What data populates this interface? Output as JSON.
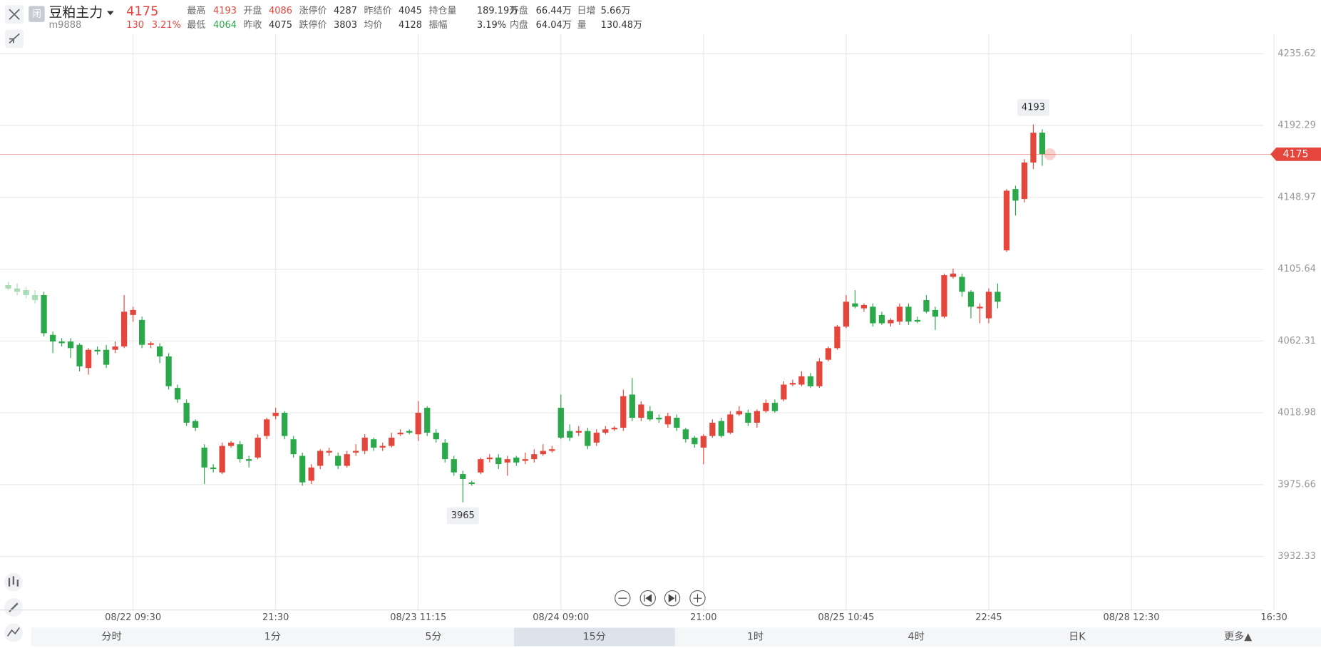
{
  "header": {
    "status": "闭",
    "name": "豆粕主力",
    "code": "m9888",
    "price": "4175",
    "change": "130",
    "change_pct": "3.21%",
    "fields": [
      {
        "label": "最高",
        "value": "4193",
        "color": "#e5463b"
      },
      {
        "label": "开盘",
        "value": "4086",
        "color": "#e5463b"
      },
      {
        "label": "涨停价",
        "value": "4287",
        "color": "#333"
      },
      {
        "label": "昨结价",
        "value": "4045",
        "color": "#333"
      },
      {
        "label": "持仓量",
        "value": "189.19万",
        "color": "#333"
      },
      {
        "label": "外盘",
        "value": "66.44万",
        "color": "#333"
      },
      {
        "label": "日增",
        "value": "5.66万",
        "color": "#333"
      },
      {
        "label": "最低",
        "value": "4064",
        "color": "#2ba84a"
      },
      {
        "label": "昨收",
        "value": "4075",
        "color": "#333"
      },
      {
        "label": "跌停价",
        "value": "3803",
        "color": "#333"
      },
      {
        "label": "均价",
        "value": "4128",
        "color": "#333"
      },
      {
        "label": "振幅",
        "value": "3.19%",
        "color": "#333"
      },
      {
        "label": "内盘",
        "value": "64.04万",
        "color": "#333"
      },
      {
        "label": "量",
        "value": "130.48万",
        "color": "#333"
      }
    ]
  },
  "chart_data": {
    "type": "candlestick",
    "up_color": "#e5463b",
    "down_color": "#2ba84a",
    "grid": true,
    "ylim": [
      3900,
      4268
    ],
    "yticks": [
      3932.33,
      3975.66,
      4018.98,
      4062.31,
      4105.64,
      4148.97,
      4192.29,
      4235.62
    ],
    "xlim": [
      -0.5,
      142.5
    ],
    "xticks": [
      {
        "value": 14,
        "label": "08/22 09:30"
      },
      {
        "value": 30,
        "label": "21:30"
      },
      {
        "value": 46,
        "label": "08/23 11:15"
      },
      {
        "value": 62,
        "label": "08/24 09:00"
      },
      {
        "value": 78,
        "label": "21:00"
      },
      {
        "value": 94,
        "label": "08/25 10:45"
      },
      {
        "value": 110,
        "label": "22:45"
      },
      {
        "value": 126,
        "label": "08/28 12:30"
      },
      {
        "value": 142,
        "label": "16:30"
      }
    ],
    "ohlc": [
      [
        4096,
        4098,
        4093,
        4094
      ],
      [
        4094,
        4097,
        4090,
        4092
      ],
      [
        4093,
        4095,
        4088,
        4090
      ],
      [
        4090,
        4093,
        4085,
        4087
      ],
      [
        4090,
        4092,
        4065,
        4067
      ],
      [
        4066,
        4068,
        4055,
        4062
      ],
      [
        4062,
        4064,
        4059,
        4061
      ],
      [
        4062,
        4064,
        4052,
        4058
      ],
      [
        4060,
        4061,
        4044,
        4047
      ],
      [
        4046,
        4058,
        4042,
        4057
      ],
      [
        4057,
        4059,
        4054,
        4056
      ],
      [
        4057,
        4060,
        4046,
        4048
      ],
      [
        4057,
        4062,
        4055,
        4059
      ],
      [
        4059,
        4090,
        4058,
        4080
      ],
      [
        4078,
        4083,
        4074,
        4081
      ],
      [
        4075,
        4077,
        4058,
        4060
      ],
      [
        4060,
        4062,
        4058,
        4061
      ],
      [
        4059,
        4061,
        4049,
        4053
      ],
      [
        4053,
        4055,
        4033,
        4035
      ],
      [
        4034,
        4036,
        4025,
        4027
      ],
      [
        4025,
        4027,
        4011,
        4013
      ],
      [
        4014,
        4015,
        4008,
        4010
      ],
      [
        3998,
        4000,
        3976,
        3986
      ],
      [
        3986,
        3988,
        3983,
        3985
      ],
      [
        3983,
        4001,
        3982,
        3999
      ],
      [
        3999,
        4002,
        3998,
        4001
      ],
      [
        4000,
        4002,
        3989,
        3991
      ],
      [
        3991,
        3993,
        3986,
        3990
      ],
      [
        3992,
        4006,
        3991,
        4004
      ],
      [
        4005,
        4016,
        4003,
        4015
      ],
      [
        4017,
        4022,
        4015,
        4019
      ],
      [
        4019,
        4020,
        4003,
        4005
      ],
      [
        4003,
        4005,
        3992,
        3994
      ],
      [
        3993,
        3995,
        3975,
        3977
      ],
      [
        3978,
        3988,
        3976,
        3986
      ],
      [
        3987,
        3997,
        3985,
        3996
      ],
      [
        3995,
        3998,
        3993,
        3996
      ],
      [
        3993,
        3995,
        3985,
        3987
      ],
      [
        3987,
        3996,
        3986,
        3994
      ],
      [
        3995,
        4000,
        3993,
        3996
      ],
      [
        3996,
        4006,
        3994,
        4004
      ],
      [
        4003,
        4004,
        3996,
        3998
      ],
      [
        3998,
        4001,
        3996,
        3999
      ],
      [
        3999,
        4007,
        3998,
        4004
      ],
      [
        4006,
        4009,
        4005,
        4007
      ],
      [
        4008,
        4009,
        4006,
        4007
      ],
      [
        4006,
        4026,
        4002,
        4019
      ],
      [
        4022,
        4023,
        4005,
        4007
      ],
      [
        4007,
        4009,
        4001,
        4003
      ],
      [
        4001,
        4003,
        3989,
        3991
      ],
      [
        3991,
        3993,
        3981,
        3983
      ],
      [
        3982,
        3984,
        3965,
        3979
      ],
      [
        3977,
        3978,
        3975,
        3976
      ],
      [
        3983,
        3992,
        3982,
        3991
      ],
      [
        3991,
        3994,
        3989,
        3992
      ],
      [
        3992,
        3994,
        3985,
        3988
      ],
      [
        3989,
        3993,
        3981,
        3991
      ],
      [
        3992,
        3993,
        3987,
        3989
      ],
      [
        3990,
        3995,
        3988,
        3991
      ],
      [
        3991,
        3997,
        3989,
        3994
      ],
      [
        3994,
        4000,
        3993,
        3996
      ],
      [
        3996,
        3999,
        3995,
        3997
      ],
      [
        4022,
        4030,
        4003,
        4004
      ],
      [
        4008,
        4012,
        4002,
        4004
      ],
      [
        4007,
        4011,
        4005,
        4008
      ],
      [
        4008,
        4010,
        3997,
        3999
      ],
      [
        4001,
        4009,
        3999,
        4007
      ],
      [
        4007,
        4011,
        4006,
        4009
      ],
      [
        4009,
        4011,
        4008,
        4010
      ],
      [
        4010,
        4033,
        4008,
        4029
      ],
      [
        4030,
        4040,
        4014,
        4016
      ],
      [
        4016,
        4026,
        4014,
        4024
      ],
      [
        4020,
        4023,
        4014,
        4015
      ],
      [
        4016,
        4018,
        4013,
        4015
      ],
      [
        4012,
        4019,
        4010,
        4017
      ],
      [
        4016,
        4018,
        4008,
        4010
      ],
      [
        4009,
        4010,
        4001,
        4003
      ],
      [
        4004,
        4005,
        3998,
        4000
      ],
      [
        3998,
        4006,
        3988,
        4005
      ],
      [
        4005,
        4015,
        4004,
        4013
      ],
      [
        4014,
        4016,
        4004,
        4005
      ],
      [
        4007,
        4020,
        4006,
        4018
      ],
      [
        4018,
        4023,
        4017,
        4020
      ],
      [
        4019,
        4021,
        4011,
        4013
      ],
      [
        4013,
        4021,
        4010,
        4020
      ],
      [
        4020,
        4027,
        4019,
        4025
      ],
      [
        4025,
        4027,
        4019,
        4020
      ],
      [
        4027,
        4038,
        4026,
        4036
      ],
      [
        4036,
        4039,
        4035,
        4037
      ],
      [
        4036,
        4044,
        4035,
        4041
      ],
      [
        4041,
        4043,
        4034,
        4035
      ],
      [
        4035,
        4052,
        4034,
        4050
      ],
      [
        4051,
        4059,
        4050,
        4058
      ],
      [
        4058,
        4072,
        4057,
        4071
      ],
      [
        4071,
        4090,
        4070,
        4086
      ],
      [
        4085,
        4093,
        4082,
        4083
      ],
      [
        4082,
        4085,
        4080,
        4084
      ],
      [
        4083,
        4085,
        4071,
        4073
      ],
      [
        4078,
        4080,
        4072,
        4073
      ],
      [
        4073,
        4076,
        4071,
        4075
      ],
      [
        4074,
        4085,
        4072,
        4083
      ],
      [
        4083,
        4085,
        4072,
        4074
      ],
      [
        4075,
        4077,
        4073,
        4074
      ],
      [
        4087,
        4090,
        4079,
        4080
      ],
      [
        4081,
        4083,
        4069,
        4077
      ],
      [
        4077,
        4103,
        4076,
        4102
      ],
      [
        4101,
        4106,
        4100,
        4103
      ],
      [
        4101,
        4103,
        4089,
        4092
      ],
      [
        4092,
        4093,
        4076,
        4083
      ],
      [
        4082,
        4085,
        4073,
        4083
      ],
      [
        4076,
        4094,
        4073,
        4092
      ],
      [
        4092,
        4097,
        4082,
        4086
      ],
      [
        4117,
        4154,
        4116,
        4153
      ],
      [
        4154,
        4156,
        4138,
        4147
      ],
      [
        4148,
        4172,
        4146,
        4170
      ],
      [
        4170,
        4193,
        4166,
        4188
      ],
      [
        4188,
        4190,
        4168,
        4175
      ]
    ]
  },
  "tabs": [
    "分时",
    "1分",
    "5分",
    "15分",
    "1时",
    "4时",
    "日K",
    "更多▲"
  ],
  "selected_tab": "15分"
}
